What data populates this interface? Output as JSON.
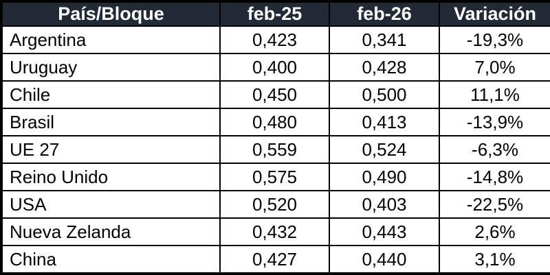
{
  "colors": {
    "header_bg": "#222A35",
    "header_text": "#FFFFFF",
    "border": "#000000",
    "row_bg": "#FFFFFF",
    "row_text": "#000000"
  },
  "table": {
    "columns": [
      "País/Bloque",
      "feb-25",
      "feb-26",
      "Variación"
    ],
    "rows": [
      [
        "Argentina",
        "0,423",
        "0,341",
        "-19,3%"
      ],
      [
        "Uruguay",
        "0,400",
        "0,428",
        "7,0%"
      ],
      [
        "Chile",
        "0,450",
        "0,500",
        "11,1%"
      ],
      [
        "Brasil",
        "0,480",
        "0,413",
        "-13,9%"
      ],
      [
        "UE 27",
        "0,559",
        "0,524",
        "-6,3%"
      ],
      [
        "Reino Unido",
        "0,575",
        "0,490",
        "-14,8%"
      ],
      [
        "USA",
        "0,520",
        "0,403",
        "-22,5%"
      ],
      [
        "Nueva Zelanda",
        "0,432",
        "0,443",
        "2,6%"
      ],
      [
        "China",
        "0,427",
        "0,440",
        "3,1%"
      ]
    ]
  },
  "chart_data": {
    "type": "table",
    "title": "",
    "columns": [
      "País/Bloque",
      "feb-25",
      "feb-26",
      "Variación"
    ],
    "categories": [
      "Argentina",
      "Uruguay",
      "Chile",
      "Brasil",
      "UE 27",
      "Reino Unido",
      "USA",
      "Nueva Zelanda",
      "China"
    ],
    "series": [
      {
        "name": "feb-25",
        "values": [
          0.423,
          0.4,
          0.45,
          0.48,
          0.559,
          0.575,
          0.52,
          0.432,
          0.427
        ]
      },
      {
        "name": "feb-26",
        "values": [
          0.341,
          0.428,
          0.5,
          0.413,
          0.524,
          0.49,
          0.403,
          0.443,
          0.44
        ]
      },
      {
        "name": "Variación (%)",
        "values": [
          -19.3,
          7.0,
          11.1,
          -13.9,
          -6.3,
          -14.8,
          -22.5,
          2.6,
          3.1
        ]
      }
    ],
    "decimal_separator": ","
  }
}
